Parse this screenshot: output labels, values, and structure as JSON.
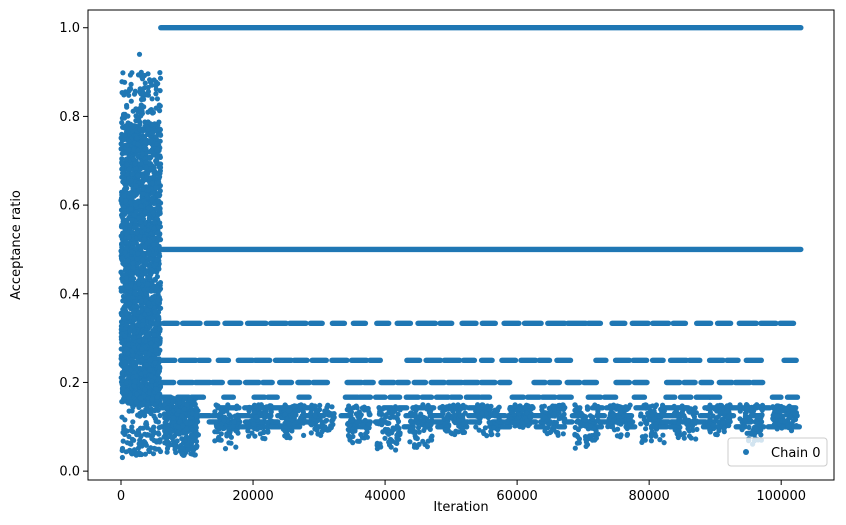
{
  "chart_data": {
    "type": "scatter",
    "xlabel": "Iteration",
    "ylabel": "Acceptance ratio",
    "xlim": [
      -5000,
      108000
    ],
    "ylim": [
      -0.02,
      1.04
    ],
    "xticks": [
      0,
      20000,
      40000,
      60000,
      80000,
      100000
    ],
    "xtick_labels": [
      "0",
      "20000",
      "40000",
      "60000",
      "80000",
      "100000"
    ],
    "yticks": [
      0.0,
      0.2,
      0.4,
      0.6,
      0.8,
      1.0
    ],
    "ytick_labels": [
      "0.0",
      "0.2",
      "0.4",
      "0.6",
      "0.8",
      "1.0"
    ],
    "grid": false,
    "legend": {
      "placement": "bottom-right",
      "entries": [
        "Chain 0"
      ]
    },
    "color": "#1f77b4",
    "series": [
      {
        "name": "Chain 0",
        "burn_in_segment": {
          "x_range": [
            0,
            6000
          ],
          "y_range": [
            0.03,
            0.94
          ],
          "dense_range": [
            0.15,
            0.78
          ]
        },
        "plateau_levels": [
          1.0,
          0.5,
          0.3333,
          0.25,
          0.2,
          0.1667,
          0.1429,
          0.125,
          0.1111,
          0.1
        ],
        "plateau_x_range": [
          6000,
          103000
        ],
        "low_excursions": [
          {
            "x": 10000,
            "min_y": 0.03
          },
          {
            "x": 16000,
            "min_y": 0.05
          },
          {
            "x": 21000,
            "min_y": 0.07
          },
          {
            "x": 26000,
            "min_y": 0.07
          },
          {
            "x": 30500,
            "min_y": 0.08
          },
          {
            "x": 36000,
            "min_y": 0.06
          },
          {
            "x": 40500,
            "min_y": 0.04
          },
          {
            "x": 45500,
            "min_y": 0.05
          },
          {
            "x": 50500,
            "min_y": 0.08
          },
          {
            "x": 55500,
            "min_y": 0.08
          },
          {
            "x": 60500,
            "min_y": 0.09
          },
          {
            "x": 65500,
            "min_y": 0.08
          },
          {
            "x": 70500,
            "min_y": 0.045
          },
          {
            "x": 75500,
            "min_y": 0.07
          },
          {
            "x": 80500,
            "min_y": 0.055
          },
          {
            "x": 85500,
            "min_y": 0.07
          },
          {
            "x": 90500,
            "min_y": 0.08
          },
          {
            "x": 95500,
            "min_y": 0.055
          },
          {
            "x": 100500,
            "min_y": 0.09
          }
        ]
      }
    ]
  }
}
